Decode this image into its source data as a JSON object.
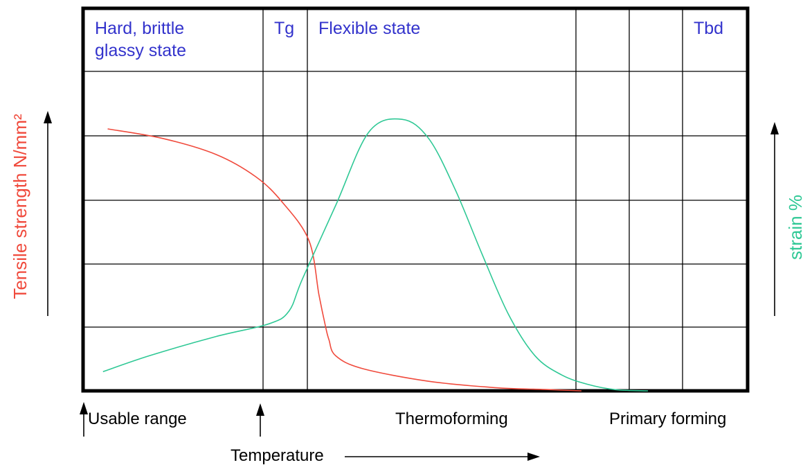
{
  "chart_data": {
    "type": "line",
    "region_labels": [
      {
        "lines": [
          "Hard, brittle",
          "glassy state"
        ]
      },
      {
        "lines": [
          "Tg"
        ]
      },
      {
        "lines": [
          "Flexible state"
        ]
      },
      {
        "lines": [
          "Tbd"
        ]
      }
    ],
    "bottom_labels": [
      "Usable range",
      "Thermoforming",
      "Primary forming"
    ],
    "xlabel": "Temperature",
    "ylabel_left": "Tensile strength N/mm²",
    "ylabel_right": "strain %",
    "xlim": [
      0,
      100
    ],
    "ylim": [
      0,
      100
    ],
    "grid": true,
    "series": [
      {
        "name": "Tensile strength N/mm²",
        "color": "#f04a3c",
        "x": [
          3.7,
          12,
          20,
          26,
          30,
          34,
          35.5,
          36.5,
          37,
          38,
          42,
          52,
          62,
          70,
          75
        ],
        "y": [
          82,
          79,
          74,
          67,
          59,
          47,
          30,
          20,
          16,
          11,
          7,
          3,
          1,
          0.4,
          0
        ]
      },
      {
        "name": "strain %",
        "color": "#2ec895",
        "x": [
          3.0,
          10,
          20,
          28,
          31,
          33,
          38,
          43,
          48,
          52,
          56,
          60,
          64,
          68,
          72,
          76,
          80,
          85
        ],
        "y": [
          6,
          11,
          17,
          21,
          25,
          35,
          58,
          81,
          85,
          79,
          63,
          43,
          24,
          11,
          5,
          2,
          0.4,
          0
        ]
      }
    ],
    "colors": {
      "tensile": "#f04a3c",
      "strain": "#2ec895",
      "region_text": "#3333cc",
      "axis": "#000000"
    }
  }
}
